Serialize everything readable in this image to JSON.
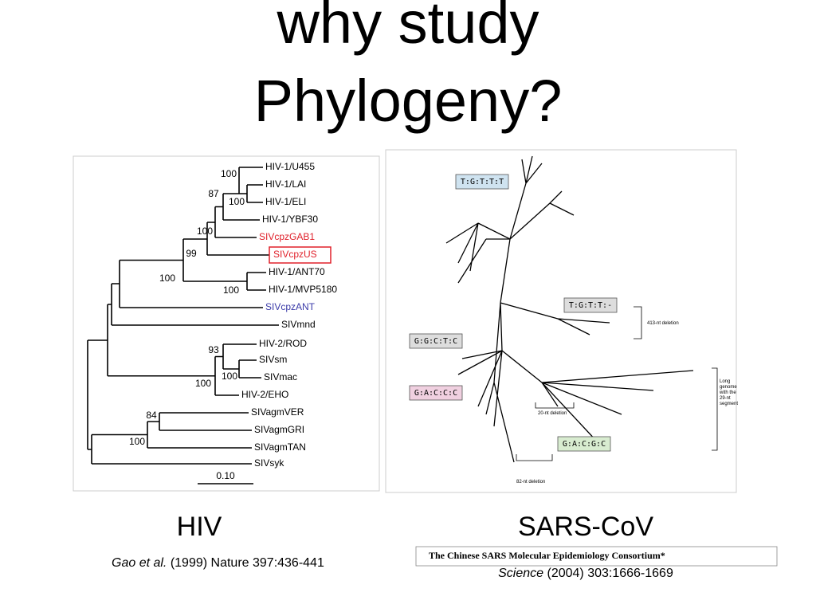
{
  "title": [
    "why study",
    "Phylogeny?"
  ],
  "hiv_tree": {
    "leaves": [
      {
        "label": "HIV-1/U455",
        "color": "#000000"
      },
      {
        "label": "HIV-1/LAI",
        "color": "#000000"
      },
      {
        "label": "HIV-1/ELI",
        "color": "#000000"
      },
      {
        "label": "HIV-1/YBF30",
        "color": "#000000"
      },
      {
        "label": "SIVcpzGAB1",
        "color": "#e0202a"
      },
      {
        "label": "SIVcpzUS",
        "color": "#e0202a"
      },
      {
        "label": "HIV-1/ANT70",
        "color": "#000000"
      },
      {
        "label": "HIV-1/MVP5180",
        "color": "#000000"
      },
      {
        "label": "SIVcpzANT",
        "color": "#3a3aa8"
      },
      {
        "label": "SIVmnd",
        "color": "#000000"
      },
      {
        "label": "HIV-2/ROD",
        "color": "#000000"
      },
      {
        "label": "SIVsm",
        "color": "#000000"
      },
      {
        "label": "SIVmac",
        "color": "#000000"
      },
      {
        "label": "HIV-2/EHO",
        "color": "#000000"
      },
      {
        "label": "SIVagmVER",
        "color": "#000000"
      },
      {
        "label": "SIVagmGRI",
        "color": "#000000"
      },
      {
        "label": "SIVagmTAN",
        "color": "#000000"
      },
      {
        "label": "SIVsyk",
        "color": "#000000"
      }
    ],
    "bootstrap": [
      100,
      87,
      100,
      100,
      99,
      100,
      100,
      93,
      100,
      100,
      84,
      100
    ],
    "scale": "0.10"
  },
  "sars_tree": {
    "motifs": [
      "T:G:T:T:T",
      "T:G:T:T:-",
      "G:G:C:T:C",
      "G:A:C:C:C",
      "G:A:C:G:C"
    ],
    "notes": [
      "413-nt deletion",
      "20-nt deletion",
      "82-nt deletion"
    ],
    "long_note": [
      "Long",
      "genome",
      "with the",
      "29-nt",
      "segment"
    ]
  },
  "captions": {
    "hiv": {
      "name": "HIV",
      "authors": "Gao et al.",
      "rest": "(1999) Nature 397:436-441"
    },
    "sars": {
      "name": "SARS-CoV",
      "consortium": "The Chinese SARS Molecular Epidemiology Consortium*",
      "journal": "Science",
      "rest": "(2004) 303:1666-1669"
    }
  }
}
